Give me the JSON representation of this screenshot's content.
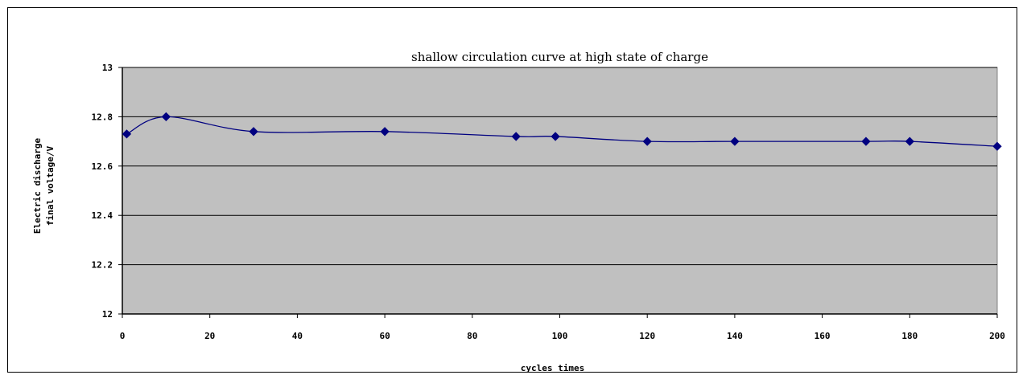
{
  "chart_data": {
    "type": "line",
    "title": "shallow circulation curve at high state of charge",
    "xlabel": "cycles times",
    "ylabel_lines": [
      "Electric discharge",
      "final voltage/V"
    ],
    "xlim": [
      0,
      200
    ],
    "ylim": [
      12,
      13
    ],
    "x_ticks": [
      0,
      20,
      40,
      60,
      80,
      100,
      120,
      140,
      160,
      180,
      200
    ],
    "x_tick_labels": [
      "0",
      "20",
      "40",
      "60",
      "80",
      "100",
      "120",
      "140",
      "160",
      "180",
      "200"
    ],
    "y_ticks": [
      12,
      12.2,
      12.4,
      12.6,
      12.8,
      13
    ],
    "y_tick_labels": [
      "12",
      "12.2",
      "12.4",
      "12.6",
      "12.8",
      "13"
    ],
    "grid": "horizontal",
    "legend": "none",
    "series": [
      {
        "x": [
          1,
          10,
          30,
          60,
          90,
          99,
          120,
          140,
          170,
          180,
          200
        ],
        "y": [
          12.73,
          12.8,
          12.74,
          12.74,
          12.72,
          12.72,
          12.7,
          12.7,
          12.7,
          12.7,
          12.68
        ]
      }
    ],
    "colors": {
      "plot_background": "#c0c0c0",
      "line": "#000080",
      "marker": "#000080",
      "grid": "#000000"
    }
  }
}
